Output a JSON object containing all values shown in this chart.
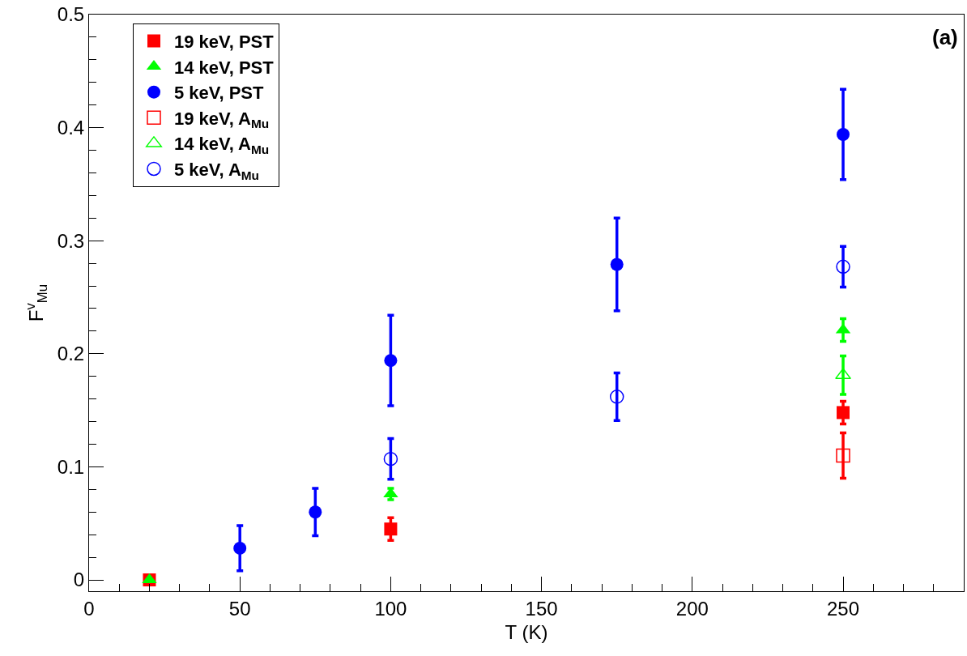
{
  "chart_data": {
    "type": "scatter",
    "xlabel": "T (K)",
    "ylabel": "F$^{v}$$_{Mu}$",
    "annotations": [
      "(a)"
    ],
    "xlim": [
      0,
      290
    ],
    "xticks": [
      0,
      50,
      100,
      150,
      200,
      250
    ],
    "ylim": [
      -0.01,
      0.5
    ],
    "yticks": [
      0,
      0.1,
      0.2,
      0.3,
      0.4,
      0.5
    ],
    "grid": false,
    "legend": "top left",
    "series": [
      {
        "name": "19 keV, PST",
        "color": "#ff0000",
        "marker": "square",
        "x": [
          20,
          100,
          250
        ],
        "values": [
          0,
          0.045,
          0.148
        ],
        "errors": [
          null,
          0.01,
          0.01
        ]
      },
      {
        "name": "14 keV, PST",
        "color": "#00ff00",
        "marker": "triangle",
        "x": [
          20,
          100,
          250
        ],
        "values": [
          0,
          0.076,
          0.221
        ],
        "errors": [
          null,
          0.005,
          0.01
        ]
      },
      {
        "name": "5 keV, PST",
        "color": "#0000ff",
        "marker": "circle",
        "x": [
          50,
          75,
          100,
          175,
          250
        ],
        "values": [
          0.028,
          0.06,
          0.194,
          0.279,
          0.394
        ],
        "errors": [
          0.02,
          0.021,
          0.04,
          0.041,
          0.04
        ]
      },
      {
        "name": "19 keV, A$_{Mu}$",
        "color": "#ff0000",
        "marker": "square-open",
        "x": [
          250
        ],
        "values": [
          0.11
        ],
        "errors": [
          0.02
        ]
      },
      {
        "name": "14 keV, A$_{Mu}$",
        "color": "#00ff00",
        "marker": "triangle-open",
        "x": [
          250
        ],
        "values": [
          0.181
        ],
        "errors": [
          0.017
        ]
      },
      {
        "name": "5 keV, A$_{Mu}$",
        "color": "#0000ff",
        "marker": "circle-open",
        "x": [
          100,
          175,
          250
        ],
        "values": [
          0.107,
          0.162,
          0.277
        ],
        "errors": [
          0.018,
          0.021,
          0.018
        ]
      }
    ]
  }
}
